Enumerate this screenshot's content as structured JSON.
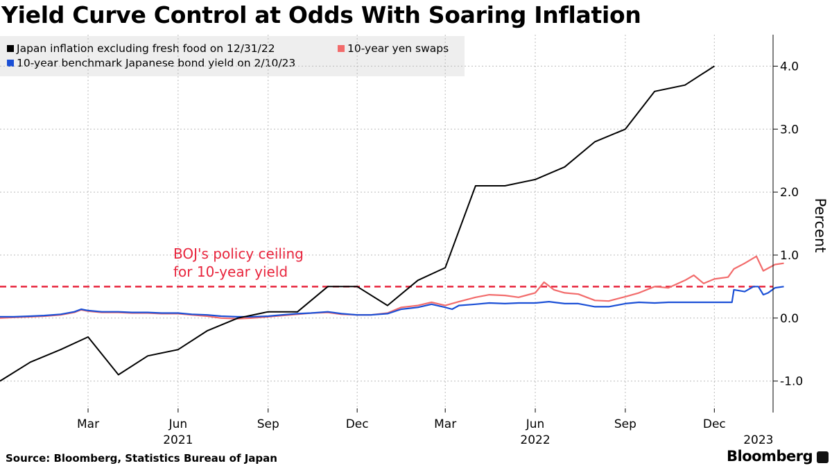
{
  "title": "Yield Curve Control at Odds With Soaring Inflation",
  "source": "Source: Bloomberg, Statistics Bureau of Japan",
  "brand": "Bloomberg",
  "chart_data": {
    "type": "line",
    "title": "Yield Curve Control at Odds With Soaring Inflation",
    "ylabel": "Percent",
    "ylim": [
      -1.5,
      4.5
    ],
    "xlim": [
      "2020-12-01",
      "2023-01-30"
    ],
    "y_axis_side": "right",
    "yticks": [
      -1.0,
      0.0,
      1.0,
      2.0,
      3.0,
      4.0
    ],
    "ytick_labels": [
      "-1.0",
      "0.0",
      "1.0",
      "2.0",
      "3.0",
      "4.0"
    ],
    "xticks": [
      {
        "date": "2021-03-01",
        "label": "Mar"
      },
      {
        "date": "2021-06-01",
        "label": "Jun"
      },
      {
        "date": "2021-09-01",
        "label": "Sep"
      },
      {
        "date": "2021-12-01",
        "label": "Dec"
      },
      {
        "date": "2022-03-01",
        "label": "Mar"
      },
      {
        "date": "2022-06-01",
        "label": "Jun"
      },
      {
        "date": "2022-09-01",
        "label": "Sep"
      },
      {
        "date": "2022-12-01",
        "label": "Dec"
      }
    ],
    "year_labels": [
      {
        "date": "2021-06-01",
        "label": "2021"
      },
      {
        "date": "2022-06-01",
        "label": "2022"
      },
      {
        "date": "2023-01-15",
        "label": "2023"
      }
    ],
    "grid": true,
    "legend_placement": "top-left",
    "reference_line": {
      "value": 0.5,
      "label_line1": "BOJ's policy ceiling",
      "label_line2": "for 10-year yield",
      "color": "#e8243c"
    },
    "series": [
      {
        "name": "Japan inflation excluding fresh food on 12/31/22",
        "color": "#000000",
        "x": [
          "2020-12-01",
          "2021-01-01",
          "2021-02-01",
          "2021-03-01",
          "2021-04-01",
          "2021-05-01",
          "2021-06-01",
          "2021-07-01",
          "2021-08-01",
          "2021-09-01",
          "2021-10-01",
          "2021-11-01",
          "2021-12-01",
          "2022-01-01",
          "2022-02-01",
          "2022-03-01",
          "2022-04-01",
          "2022-05-01",
          "2022-06-01",
          "2022-07-01",
          "2022-08-01",
          "2022-09-01",
          "2022-10-01",
          "2022-11-01",
          "2022-12-01"
        ],
        "y": [
          -1.0,
          -0.7,
          -0.5,
          -0.3,
          -0.9,
          -0.6,
          -0.5,
          -0.2,
          0.0,
          0.1,
          0.1,
          0.5,
          0.5,
          0.2,
          0.6,
          0.8,
          2.1,
          2.1,
          2.2,
          2.4,
          2.8,
          3.0,
          3.6,
          3.7,
          4.0
        ]
      },
      {
        "name": "10-year yen swaps",
        "color": "#f26b6b",
        "x": [
          "2020-12-01",
          "2020-12-15",
          "2021-01-01",
          "2021-01-15",
          "2021-02-01",
          "2021-02-15",
          "2021-02-22",
          "2021-03-01",
          "2021-03-15",
          "2021-04-01",
          "2021-04-15",
          "2021-05-01",
          "2021-05-15",
          "2021-06-01",
          "2021-06-15",
          "2021-07-01",
          "2021-07-15",
          "2021-08-01",
          "2021-08-15",
          "2021-09-01",
          "2021-09-15",
          "2021-10-01",
          "2021-10-15",
          "2021-11-01",
          "2021-11-15",
          "2021-12-01",
          "2021-12-15",
          "2022-01-01",
          "2022-01-15",
          "2022-02-01",
          "2022-02-15",
          "2022-03-01",
          "2022-03-15",
          "2022-04-01",
          "2022-04-15",
          "2022-05-01",
          "2022-05-15",
          "2022-06-01",
          "2022-06-10",
          "2022-06-20",
          "2022-07-01",
          "2022-07-15",
          "2022-08-01",
          "2022-08-15",
          "2022-09-01",
          "2022-09-15",
          "2022-10-01",
          "2022-10-15",
          "2022-11-01",
          "2022-11-10",
          "2022-11-20",
          "2022-12-01",
          "2022-12-15",
          "2022-12-21",
          "2023-01-01",
          "2023-01-13",
          "2023-01-20",
          "2023-02-01",
          "2023-02-10"
        ],
        "y": [
          0.0,
          0.01,
          0.02,
          0.03,
          0.05,
          0.09,
          0.13,
          0.11,
          0.09,
          0.09,
          0.08,
          0.08,
          0.07,
          0.07,
          0.05,
          0.03,
          0.0,
          -0.01,
          0.0,
          0.02,
          0.04,
          0.06,
          0.08,
          0.09,
          0.06,
          0.05,
          0.05,
          0.08,
          0.17,
          0.2,
          0.25,
          0.2,
          0.26,
          0.33,
          0.37,
          0.36,
          0.33,
          0.4,
          0.57,
          0.45,
          0.4,
          0.38,
          0.28,
          0.27,
          0.34,
          0.4,
          0.5,
          0.48,
          0.6,
          0.68,
          0.55,
          0.62,
          0.65,
          0.78,
          0.87,
          0.98,
          0.75,
          0.85,
          0.87
        ]
      },
      {
        "name": "10-year benchmark Japanese bond yield on 2/10/23",
        "color": "#1a4fd6",
        "x": [
          "2020-12-01",
          "2020-12-15",
          "2021-01-01",
          "2021-01-15",
          "2021-02-01",
          "2021-02-15",
          "2021-02-22",
          "2021-03-01",
          "2021-03-15",
          "2021-04-01",
          "2021-04-15",
          "2021-05-01",
          "2021-05-15",
          "2021-06-01",
          "2021-06-15",
          "2021-07-01",
          "2021-07-15",
          "2021-08-01",
          "2021-08-15",
          "2021-09-01",
          "2021-09-15",
          "2021-10-01",
          "2021-10-15",
          "2021-11-01",
          "2021-11-15",
          "2021-12-01",
          "2021-12-15",
          "2022-01-01",
          "2022-01-15",
          "2022-02-01",
          "2022-02-15",
          "2022-03-01",
          "2022-03-08",
          "2022-03-15",
          "2022-04-01",
          "2022-04-15",
          "2022-05-01",
          "2022-05-15",
          "2022-06-01",
          "2022-06-15",
          "2022-07-01",
          "2022-07-15",
          "2022-08-01",
          "2022-08-15",
          "2022-09-01",
          "2022-09-15",
          "2022-10-01",
          "2022-10-15",
          "2022-11-01",
          "2022-11-15",
          "2022-12-01",
          "2022-12-19",
          "2022-12-21",
          "2023-01-01",
          "2023-01-10",
          "2023-01-15",
          "2023-01-20",
          "2023-01-25",
          "2023-02-01",
          "2023-02-10"
        ],
        "y": [
          0.02,
          0.02,
          0.03,
          0.04,
          0.06,
          0.1,
          0.14,
          0.12,
          0.1,
          0.1,
          0.09,
          0.09,
          0.08,
          0.08,
          0.06,
          0.05,
          0.03,
          0.02,
          0.02,
          0.03,
          0.05,
          0.07,
          0.08,
          0.1,
          0.07,
          0.05,
          0.05,
          0.07,
          0.14,
          0.17,
          0.22,
          0.17,
          0.14,
          0.2,
          0.22,
          0.24,
          0.23,
          0.24,
          0.24,
          0.26,
          0.23,
          0.23,
          0.18,
          0.18,
          0.23,
          0.25,
          0.24,
          0.25,
          0.25,
          0.25,
          0.25,
          0.25,
          0.45,
          0.42,
          0.5,
          0.5,
          0.37,
          0.4,
          0.48,
          0.5
        ]
      }
    ]
  }
}
